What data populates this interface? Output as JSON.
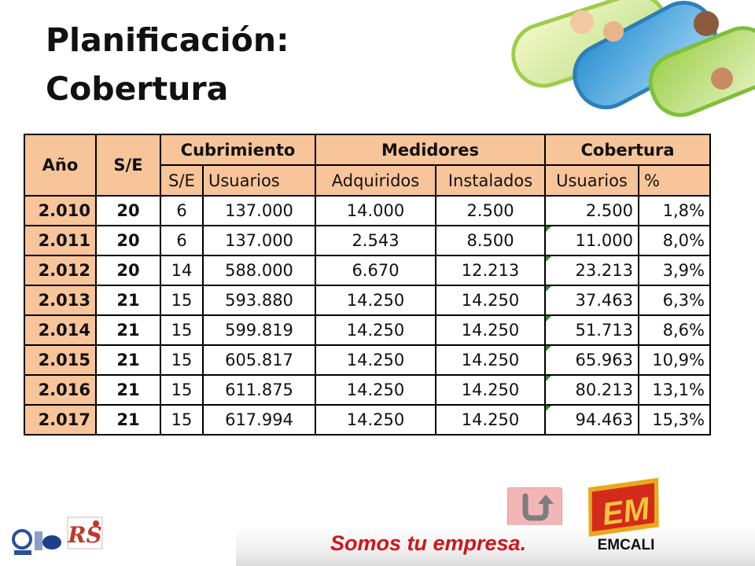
{
  "title": {
    "line1": "Planificación:",
    "line2": "Cobertura"
  },
  "table": {
    "headers": {
      "anio": "Año",
      "se": "S/E",
      "cubrimiento": "Cubrimiento",
      "medidores": "Medidores",
      "cobertura": "Cobertura",
      "sub": [
        "S/E",
        "Usuarios",
        "Adquiridos",
        "Instalados",
        "Usuarios",
        "%"
      ]
    },
    "rows": [
      [
        "2.010",
        "20",
        "6",
        "137.000",
        "14.000",
        "2.500",
        "2.500",
        "1,8%"
      ],
      [
        "2.011",
        "20",
        "6",
        "137.000",
        "2.543",
        "8.500",
        "11.000",
        "8,0%"
      ],
      [
        "2.012",
        "20",
        "14",
        "588.000",
        "6.670",
        "12.213",
        "23.213",
        "3,9%"
      ],
      [
        "2.013",
        "21",
        "15",
        "593.880",
        "14.250",
        "14.250",
        "37.463",
        "6,3%"
      ],
      [
        "2.014",
        "21",
        "15",
        "599.819",
        "14.250",
        "14.250",
        "51.713",
        "8,6%"
      ],
      [
        "2.015",
        "21",
        "15",
        "605.817",
        "14.250",
        "14.250",
        "65.963",
        "10,9%"
      ],
      [
        "2.016",
        "21",
        "15",
        "611.875",
        "14.250",
        "14.250",
        "80.213",
        "13,1%"
      ],
      [
        "2.017",
        "21",
        "15",
        "617.994",
        "14.250",
        "14.250",
        "94.463",
        "15,3%"
      ]
    ]
  },
  "footer": {
    "slogan": "Somos tu empresa.",
    "brand": "EMCALI",
    "logo_mark": "EM"
  },
  "colors": {
    "header_fill": "#f8c49a",
    "slogan": "#d0161a",
    "flag": "#2e8b2e"
  },
  "icons": {
    "back_button": "return-arrow-icon"
  }
}
